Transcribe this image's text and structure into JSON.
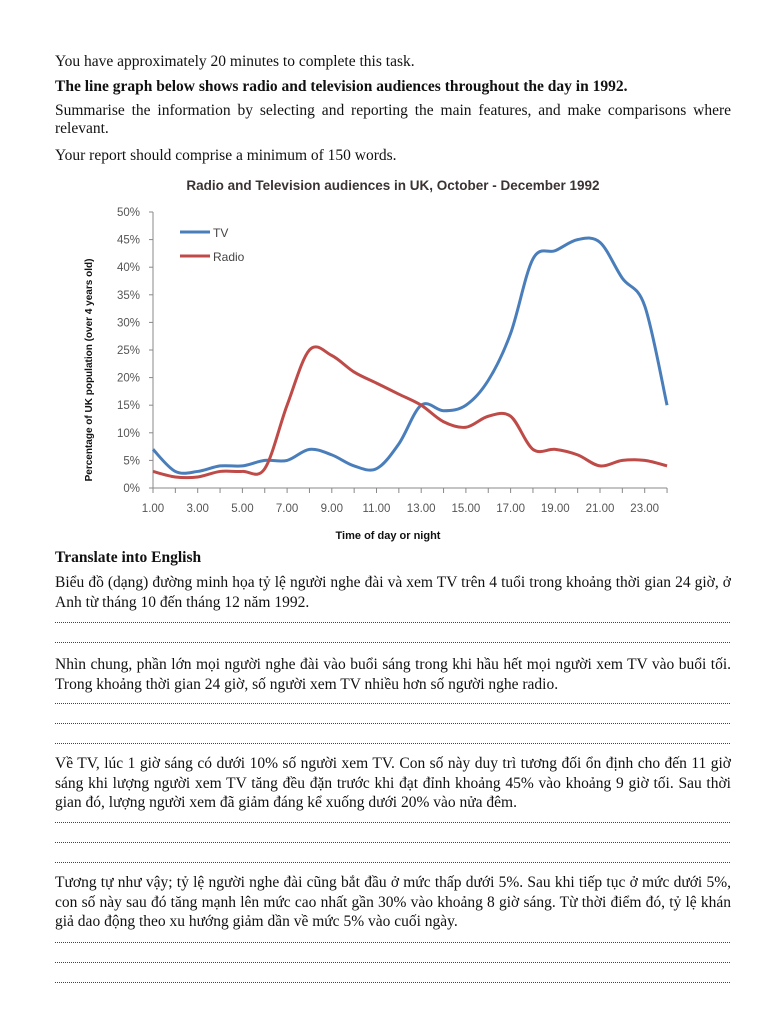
{
  "task": {
    "intro": "You have approximately 20 minutes to complete this task.",
    "prompt": "The line graph below shows radio and television audiences throughout the day in 1992.",
    "instruction": "Summarise the information by selecting and reporting the main features, and make comparisons where relevant.",
    "requirement": "Your report should comprise a minimum of 150 words."
  },
  "translate": {
    "heading": "Translate into English",
    "paragraphs": [
      "Biểu đồ (dạng) đường minh họa tỷ lệ người nghe đài và xem TV trên 4 tuổi trong khoảng thời gian 24 giờ, ở Anh từ tháng 10 đến tháng 12 năm 1992.",
      "Nhìn chung, phần lớn mọi người nghe đài vào buổi sáng trong khi hầu hết mọi người xem TV vào buổi tối. Trong khoảng thời gian 24 giờ, số người xem TV nhiều hơn số người nghe radio.",
      "Về TV, lúc 1 giờ sáng có dưới 10% số người xem TV. Con số này duy trì tương đối ổn định cho đến 11 giờ sáng khi lượng người xem TV tăng đều đặn trước khi đạt đỉnh khoảng 45% vào khoảng 9 giờ tối. Sau thời gian đó, lượng người xem đã giảm đáng kể xuống dưới 20% vào nửa đêm.",
      "Tương tự như vậy; tỷ lệ người nghe đài cũng bắt đầu ở mức thấp dưới 5%. Sau khi tiếp tục ở mức dưới 5%, con số này sau đó tăng mạnh lên mức cao nhất gần 30% vào khoảng 8 giờ sáng. Từ thời điểm đó, tỷ lệ khán giả dao động theo xu hướng giảm dần về mức 5% vào cuối ngày."
    ]
  },
  "chart_data": {
    "type": "line",
    "title": "Radio and Television audiences in UK, October - December 1992",
    "xlabel": "Time of day or night",
    "ylabel": "Percentage of UK population (over 4 years old)",
    "x": [
      1,
      2,
      3,
      4,
      5,
      6,
      7,
      8,
      9,
      10,
      11,
      12,
      13,
      14,
      15,
      16,
      17,
      18,
      19,
      20,
      21,
      22,
      23,
      24
    ],
    "x_tick_labels": [
      "1.00",
      "3.00",
      "5.00",
      "7.00",
      "9.00",
      "11.00",
      "13.00",
      "15.00",
      "17.00",
      "19.00",
      "21.00",
      "23.00"
    ],
    "x_tick_values": [
      1,
      3,
      5,
      7,
      9,
      11,
      13,
      15,
      17,
      19,
      21,
      23
    ],
    "y_tick_labels": [
      "0%",
      "5%",
      "10%",
      "15%",
      "20%",
      "25%",
      "30%",
      "35%",
      "40%",
      "45%",
      "50%"
    ],
    "ylim": [
      0,
      50
    ],
    "xlim": [
      1,
      24
    ],
    "grid": false,
    "legend_position": "top-left",
    "series": [
      {
        "name": "TV",
        "color": "#4a7ebb",
        "values": [
          7,
          3,
          3,
          4,
          4,
          5,
          5,
          7,
          6,
          4,
          3.5,
          8,
          15,
          14,
          15,
          19.5,
          28,
          41.5,
          43,
          45,
          44.5,
          38,
          33,
          15
        ]
      },
      {
        "name": "Radio",
        "color": "#be4b48",
        "values": [
          3,
          2,
          2,
          3,
          3,
          3.5,
          15,
          25,
          24,
          21,
          19,
          17,
          15,
          12,
          11,
          13,
          13,
          7,
          7,
          6,
          4,
          5,
          5,
          4
        ]
      }
    ]
  }
}
